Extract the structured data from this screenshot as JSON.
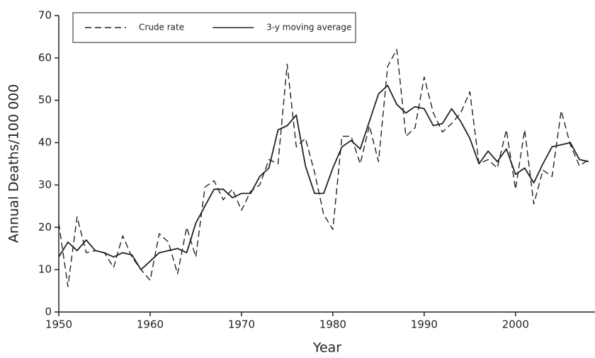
{
  "chart_data": {
    "type": "line",
    "xlabel": "Year",
    "ylabel": "Annual Deaths/100 000",
    "x": [
      1950,
      1951,
      1952,
      1953,
      1954,
      1955,
      1956,
      1957,
      1958,
      1959,
      1960,
      1961,
      1962,
      1963,
      1964,
      1965,
      1966,
      1967,
      1968,
      1969,
      1970,
      1971,
      1972,
      1973,
      1974,
      1975,
      1976,
      1977,
      1978,
      1979,
      1980,
      1981,
      1982,
      1983,
      1984,
      1985,
      1986,
      1987,
      1988,
      1989,
      1990,
      1991,
      1992,
      1993,
      1994,
      1995,
      1996,
      1997,
      1998,
      1999,
      2000,
      2001,
      2002,
      2003,
      2004,
      2005,
      2006,
      2007,
      2008
    ],
    "series": [
      {
        "name": "Crude rate",
        "color": "#222222",
        "style": "dashed",
        "values": [
          21,
          6,
          22.5,
          14,
          14.5,
          14,
          10.5,
          18,
          13,
          10,
          7.5,
          18.5,
          16.5,
          9,
          20,
          13,
          29.5,
          31,
          26.5,
          29,
          24,
          28.5,
          30,
          36,
          35,
          58.5,
          39,
          41,
          33,
          23,
          19.5,
          41.5,
          41.5,
          35,
          44,
          35.5,
          58,
          62,
          41.5,
          43.5,
          55.5,
          47,
          42.5,
          44.5,
          47,
          52,
          35,
          36,
          34,
          43,
          29,
          43,
          25.5,
          33.5,
          32,
          47.5,
          39.5,
          34.5,
          36
        ]
      },
      {
        "name": "3-y moving average",
        "color": "#222222",
        "style": "solid",
        "values": [
          13,
          16.5,
          14.5,
          17,
          14.5,
          14,
          13,
          14,
          13.5,
          10,
          12,
          14,
          14.5,
          15,
          14,
          21,
          25,
          29,
          29,
          27,
          28,
          28,
          32,
          34,
          43,
          44,
          46.5,
          34.5,
          28,
          28,
          34,
          39,
          40.5,
          38.5,
          45,
          51.5,
          53.5,
          49,
          47,
          48.5,
          48,
          44,
          44.5,
          48,
          45,
          41,
          35,
          38,
          35.5,
          38.5,
          32.5,
          34,
          30.5,
          35,
          39,
          39.5,
          40,
          36,
          35.5
        ]
      }
    ],
    "xlim": [
      1950,
      2008.7
    ],
    "xticks": [
      1950,
      1960,
      1970,
      1980,
      1990,
      2000
    ],
    "ylim": [
      0,
      70
    ],
    "yticks": [
      0,
      10,
      20,
      30,
      40,
      50,
      60,
      70
    ],
    "legend": "upper left",
    "grid": false
  }
}
